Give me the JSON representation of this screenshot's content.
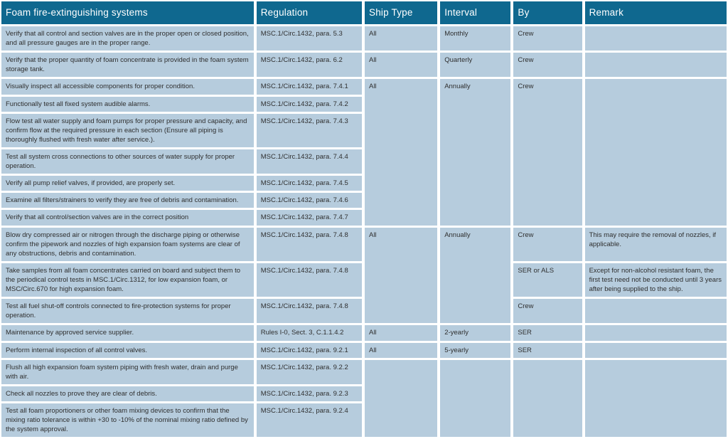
{
  "table": {
    "title": "Foam fire-extinguishing systems",
    "columns": [
      "Regulation",
      "Ship Type",
      "Interval",
      "By",
      "Remark"
    ],
    "colors": {
      "header_bg": "#0f688f",
      "header_text": "#ffffff",
      "cell_bg": "#b6ccdd",
      "body_text": "#2f2f2f",
      "gap": "#ffffff"
    },
    "rows": [
      {
        "cells": [
          {
            "col": "task",
            "text": "Verify that all control and section valves are in the proper open or closed position, and all pressure gauges are in the proper range."
          },
          {
            "col": "reg",
            "text": "MSC.1/Circ.1432, para. 5.3"
          },
          {
            "col": "ship",
            "text": "All"
          },
          {
            "col": "interval",
            "text": "Monthly"
          },
          {
            "col": "by",
            "text": "Crew"
          },
          {
            "col": "remark",
            "text": ""
          }
        ]
      },
      {
        "cells": [
          {
            "col": "task",
            "text": "Verify that the proper quantity of foam concentrate is provided in the foam system storage tank."
          },
          {
            "col": "reg",
            "text": "MSC.1/Circ.1432, para. 6.2"
          },
          {
            "col": "ship",
            "text": "All"
          },
          {
            "col": "interval",
            "text": "Quarterly"
          },
          {
            "col": "by",
            "text": "Crew"
          },
          {
            "col": "remark",
            "text": ""
          }
        ]
      },
      {
        "cells": [
          {
            "col": "task",
            "text": "Visually inspect all accessible components for proper condition."
          },
          {
            "col": "reg",
            "text": "MSC.1/Circ.1432, para. 7.4.1"
          },
          {
            "col": "ship",
            "text": "All",
            "rowspan": 7
          },
          {
            "col": "interval",
            "text": "Annually",
            "rowspan": 7
          },
          {
            "col": "by",
            "text": "Crew",
            "rowspan": 7
          },
          {
            "col": "remark",
            "text": "",
            "rowspan": 7
          }
        ]
      },
      {
        "cells": [
          {
            "col": "task",
            "text": "Functionally test all fixed system audible alarms."
          },
          {
            "col": "reg",
            "text": "MSC.1/Circ.1432, para. 7.4.2"
          }
        ]
      },
      {
        "cells": [
          {
            "col": "task",
            "text": "Flow test all water supply and foam pumps for proper pressure and capacity, and confirm flow at the required pressure in each section (Ensure all piping is thoroughly flushed with fresh water after service.)."
          },
          {
            "col": "reg",
            "text": "MSC.1/Circ.1432, para. 7.4.3"
          }
        ]
      },
      {
        "cells": [
          {
            "col": "task",
            "text": "Test all system cross connections to other sources of water supply for proper operation."
          },
          {
            "col": "reg",
            "text": "MSC.1/Circ.1432, para. 7.4.4"
          }
        ]
      },
      {
        "cells": [
          {
            "col": "task",
            "text": "Verify all pump relief valves, if provided, are properly set."
          },
          {
            "col": "reg",
            "text": "MSC.1/Circ.1432, para. 7.4.5"
          }
        ]
      },
      {
        "cells": [
          {
            "col": "task",
            "text": "Examine all filters/strainers to verify they are free of debris and contamination."
          },
          {
            "col": "reg",
            "text": "MSC.1/Circ.1432, para. 7.4.6"
          }
        ]
      },
      {
        "cells": [
          {
            "col": "task",
            "text": "Verify that all control/section valves are in the correct position"
          },
          {
            "col": "reg",
            "text": "MSC.1/Circ.1432, para. 7.4.7"
          }
        ]
      },
      {
        "cells": [
          {
            "col": "task",
            "text": "Blow dry compressed air or nitrogen through the discharge piping or otherwise confirm the pipework and nozzles of high expansion foam systems are clear of any obstructions, debris and contamination."
          },
          {
            "col": "reg",
            "text": "MSC.1/Circ.1432, para. 7.4.8"
          },
          {
            "col": "ship",
            "text": "All",
            "rowspan": 3
          },
          {
            "col": "interval",
            "text": "Annually",
            "rowspan": 3
          },
          {
            "col": "by",
            "text": "Crew"
          },
          {
            "col": "remark",
            "text": "This may require the removal of nozzles, if applicable."
          }
        ]
      },
      {
        "cells": [
          {
            "col": "task",
            "text": "Take samples from all foam concentrates carried on board and subject them to the periodical control tests in MSC.1/Circ.1312, for low expansion foam, or MSC/Circ.670 for high expansion foam."
          },
          {
            "col": "reg",
            "text": "MSC.1/Circ.1432, para. 7.4.8"
          },
          {
            "col": "by",
            "text": "SER or ALS"
          },
          {
            "col": "remark",
            "text": "Except for non-alcohol resistant foam, the first test need not be conducted until 3 years after being supplied to the ship."
          }
        ]
      },
      {
        "cells": [
          {
            "col": "task",
            "text": "Test all fuel shut-off controls connected to fire-protection systems for proper operation."
          },
          {
            "col": "reg",
            "text": "MSC.1/Circ.1432, para. 7.4.8"
          },
          {
            "col": "by",
            "text": "Crew"
          },
          {
            "col": "remark",
            "text": ""
          }
        ]
      },
      {
        "cells": [
          {
            "col": "task",
            "text": "Maintenance by approved service supplier."
          },
          {
            "col": "reg",
            "text": "Rules I-0, Sect. 3, C.1.1.4.2"
          },
          {
            "col": "ship",
            "text": "All"
          },
          {
            "col": "interval",
            "text": "2-yearly"
          },
          {
            "col": "by",
            "text": "SER"
          },
          {
            "col": "remark",
            "text": ""
          }
        ]
      },
      {
        "cells": [
          {
            "col": "task",
            "text": "Perform internal inspection of all control valves."
          },
          {
            "col": "reg",
            "text": "MSC.1/Circ.1432, para. 9.2.1"
          },
          {
            "col": "ship",
            "text": "All"
          },
          {
            "col": "interval",
            "text": "5-yearly"
          },
          {
            "col": "by",
            "text": "SER"
          },
          {
            "col": "remark",
            "text": ""
          }
        ]
      },
      {
        "cells": [
          {
            "col": "task",
            "text": "Flush all high expansion foam system piping with fresh water, drain and purge with air."
          },
          {
            "col": "reg",
            "text": "MSC.1/Circ.1432, para. 9.2.2"
          },
          {
            "col": "ship",
            "text": "",
            "rowspan": 3
          },
          {
            "col": "interval",
            "text": "",
            "rowspan": 3
          },
          {
            "col": "by",
            "text": "",
            "rowspan": 3
          },
          {
            "col": "remark",
            "text": "",
            "rowspan": 3
          }
        ]
      },
      {
        "cells": [
          {
            "col": "task",
            "text": "Check all nozzles to prove they are clear of debris."
          },
          {
            "col": "reg",
            "text": "MSC.1/Circ.1432, para. 9.2.3"
          }
        ]
      },
      {
        "cells": [
          {
            "col": "task",
            "text": "Test all foam proportioners or other foam mixing devices to confirm that the mixing ratio tolerance is within +30 to -10% of the nominal mixing ratio defined by the system approval."
          },
          {
            "col": "reg",
            "text": "MSC.1/Circ.1432, para. 9.2.4"
          }
        ]
      }
    ]
  }
}
